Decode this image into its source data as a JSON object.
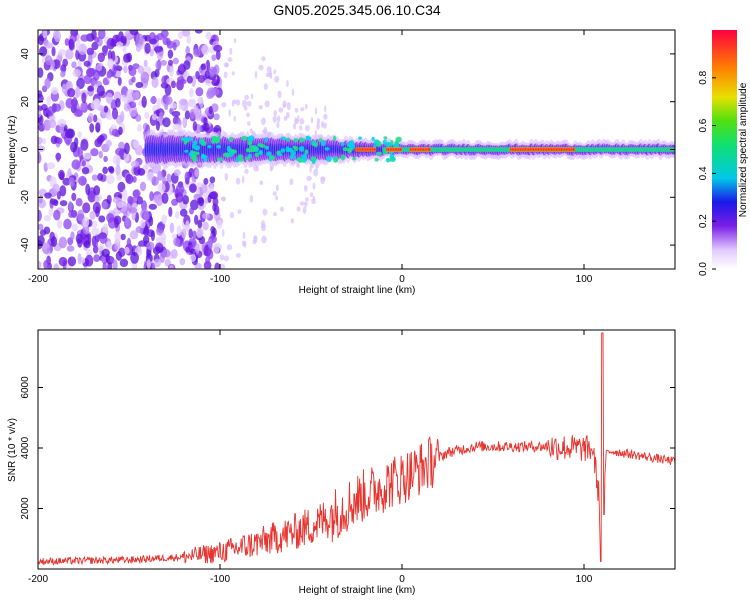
{
  "title": "GN05.2025.345.06.10.C34",
  "chart_data": [
    {
      "type": "heatmap",
      "name": "spectrogram",
      "xlabel": "Height of straight line (km)",
      "ylabel": "Frequency (Hz)",
      "xlim": [
        -200,
        150
      ],
      "ylim": [
        -50,
        50
      ],
      "xticks": [
        "-200",
        "-100",
        "0",
        "100"
      ],
      "yticks": [
        "-40",
        "-20",
        "0",
        "20",
        "40"
      ],
      "colorbar": {
        "label": "Normalized spectral amplitude",
        "range": [
          0,
          1
        ],
        "ticks": [
          "0.0",
          "0.2",
          "0.4",
          "0.6",
          "0.8"
        ]
      },
      "features": {
        "noise_region_km": [
          -200,
          -100
        ],
        "sparse_noise_region_km": [
          -100,
          -40
        ],
        "signal_band_hz": 0,
        "signal_band_start_km": -140,
        "strong_segments_km": [
          [
            -25,
            -15
          ],
          [
            -8,
            0
          ],
          [
            5,
            15
          ],
          [
            60,
            95
          ]
        ]
      }
    },
    {
      "type": "line",
      "name": "snr",
      "xlabel": "Height of straight line (km)",
      "ylabel": "SNR (10 * v/v)",
      "xlim": [
        -200,
        150
      ],
      "ylim": [
        0,
        7900
      ],
      "xticks": [
        "-200",
        "-100",
        "0",
        "100"
      ],
      "yticks": [
        "2000",
        "4000",
        "6000"
      ],
      "color": "#e8332e",
      "series": [
        {
          "name": "SNR",
          "x": [
            -200,
            -150,
            -120,
            -100,
            -80,
            -60,
            -45,
            -35,
            -25,
            -15,
            -5,
            5,
            15,
            25,
            40,
            60,
            80,
            95,
            105,
            108,
            109,
            110,
            111,
            112,
            115,
            130,
            150
          ],
          "y": [
            250,
            300,
            400,
            550,
            850,
            1200,
            1550,
            1900,
            2300,
            2600,
            2900,
            3150,
            3500,
            3850,
            4050,
            4050,
            4050,
            4000,
            3950,
            2500,
            1300,
            6700,
            2200,
            3800,
            3900,
            3750,
            3550
          ]
        }
      ]
    }
  ]
}
